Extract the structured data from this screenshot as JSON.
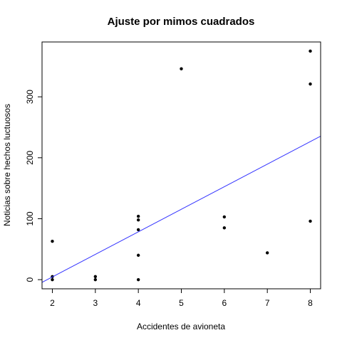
{
  "chart_data": {
    "type": "scatter",
    "title": "Ajuste por mimos cuadrados",
    "xlabel": "Accidentes de avioneta",
    "ylabel": "Noticias sobre hechos luctuosos",
    "xlim": [
      1.76,
      8.24
    ],
    "ylim": [
      -15,
      390
    ],
    "xticks": [
      2,
      3,
      4,
      5,
      6,
      7,
      8
    ],
    "yticks": [
      0,
      100,
      200,
      300
    ],
    "grid": false,
    "legend": "none",
    "series": [
      {
        "type": "scatter",
        "color": "#000000",
        "points": [
          {
            "x": 2,
            "y": 63
          },
          {
            "x": 2,
            "y": 5
          },
          {
            "x": 2,
            "y": 0
          },
          {
            "x": 3,
            "y": 5
          },
          {
            "x": 3,
            "y": 0
          },
          {
            "x": 4,
            "y": 104
          },
          {
            "x": 4,
            "y": 98
          },
          {
            "x": 4,
            "y": 82
          },
          {
            "x": 4,
            "y": 40
          },
          {
            "x": 4,
            "y": 0
          },
          {
            "x": 5,
            "y": 346
          },
          {
            "x": 6,
            "y": 103
          },
          {
            "x": 6,
            "y": 85
          },
          {
            "x": 7,
            "y": 44
          },
          {
            "x": 8,
            "y": 375
          },
          {
            "x": 8,
            "y": 321
          },
          {
            "x": 8,
            "y": 96
          }
        ]
      },
      {
        "type": "line",
        "color": "#3333ff",
        "intercept": -69.5,
        "slope": 37
      }
    ]
  }
}
